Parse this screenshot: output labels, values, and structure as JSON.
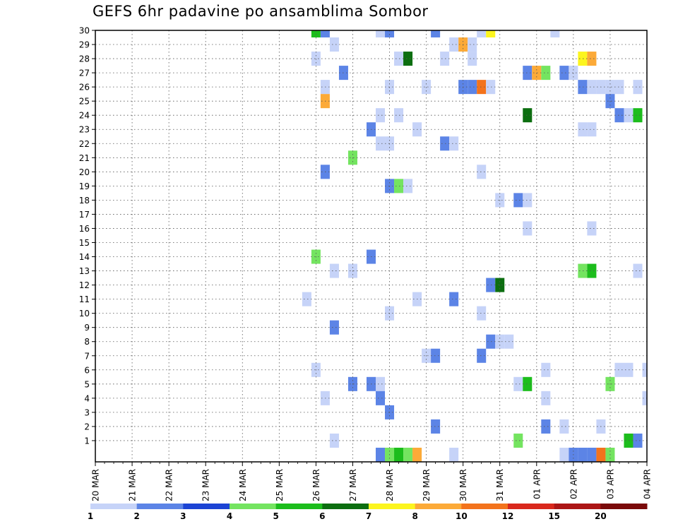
{
  "chart_data": {
    "type": "heatmap",
    "title": "GEFS 6hr padavine po ansamblima Sombor",
    "xlabel": "",
    "ylabel": "",
    "x_start": "20 MAR 00Z",
    "x_step_hours": 6,
    "x_steps": 60,
    "x_tick_labels": [
      "20 MAR",
      "21 MAR",
      "22 MAR",
      "23 MAR",
      "24 MAR",
      "25 MAR",
      "26 MAR",
      "27 MAR",
      "28 MAR",
      "29 MAR",
      "30 MAR",
      "31 MAR",
      "01 APR",
      "02 APR",
      "03 APR",
      "04 APR"
    ],
    "y_tick_labels": [
      "1",
      "2",
      "3",
      "4",
      "5",
      "6",
      "7",
      "8",
      "9",
      "10",
      "11",
      "12",
      "13",
      "14",
      "15",
      "16",
      "17",
      "18",
      "19",
      "20",
      "21",
      "22",
      "23",
      "24",
      "25",
      "26",
      "27",
      "28",
      "29",
      "30"
    ],
    "grid": true,
    "colorbar": {
      "labels": [
        "1",
        "2",
        "3",
        "4",
        "5",
        "6",
        "7",
        "8",
        "10",
        "12",
        "15",
        "20"
      ],
      "colors": [
        "#c6d3f8",
        "#5c84e6",
        "#1c44d4",
        "#74e460",
        "#1cbd1c",
        "#0c6e10",
        "#fcf51e",
        "#fcaa38",
        "#f3731c",
        "#d9281c",
        "#ac1616",
        "#7a0a0a"
      ]
    },
    "cells": [
      {
        "t": 24,
        "m": 30,
        "v": 5.5
      },
      {
        "t": 25,
        "m": 30,
        "v": 2
      },
      {
        "t": 31,
        "m": 30,
        "v": 1
      },
      {
        "t": 32,
        "m": 30,
        "v": 2
      },
      {
        "t": 37,
        "m": 30,
        "v": 2
      },
      {
        "t": 42,
        "m": 30,
        "v": 1
      },
      {
        "t": 43,
        "m": 30,
        "v": 7.5
      },
      {
        "t": 50,
        "m": 30,
        "v": 1
      },
      {
        "t": 26,
        "m": 29,
        "v": 1
      },
      {
        "t": 39,
        "m": 29,
        "v": 1
      },
      {
        "t": 40,
        "m": 29,
        "v": 9
      },
      {
        "t": 41,
        "m": 29,
        "v": 1
      },
      {
        "t": 24,
        "m": 28,
        "v": 1
      },
      {
        "t": 33,
        "m": 28,
        "v": 1
      },
      {
        "t": 34,
        "m": 28,
        "v": 6.5
      },
      {
        "t": 38,
        "m": 28,
        "v": 1
      },
      {
        "t": 41,
        "m": 28,
        "v": 1
      },
      {
        "t": 53,
        "m": 28,
        "v": 7.5
      },
      {
        "t": 54,
        "m": 28,
        "v": 9
      },
      {
        "t": 27,
        "m": 27,
        "v": 2
      },
      {
        "t": 47,
        "m": 27,
        "v": 2
      },
      {
        "t": 48,
        "m": 27,
        "v": 9
      },
      {
        "t": 49,
        "m": 27,
        "v": 4.5
      },
      {
        "t": 51,
        "m": 27,
        "v": 2
      },
      {
        "t": 52,
        "m": 27,
        "v": 1
      },
      {
        "t": 25,
        "m": 26,
        "v": 1
      },
      {
        "t": 32,
        "m": 26,
        "v": 1
      },
      {
        "t": 36,
        "m": 26,
        "v": 1
      },
      {
        "t": 40,
        "m": 26,
        "v": 2
      },
      {
        "t": 41,
        "m": 26,
        "v": 2.5
      },
      {
        "t": 42,
        "m": 26,
        "v": 11
      },
      {
        "t": 43,
        "m": 26,
        "v": 1
      },
      {
        "t": 53,
        "m": 26,
        "v": 2
      },
      {
        "t": 54,
        "m": 26,
        "v": 1
      },
      {
        "t": 55,
        "m": 26,
        "v": 1
      },
      {
        "t": 56,
        "m": 26,
        "v": 1
      },
      {
        "t": 57,
        "m": 26,
        "v": 1
      },
      {
        "t": 59,
        "m": 26,
        "v": 1
      },
      {
        "t": 25,
        "m": 25,
        "v": 9
      },
      {
        "t": 56,
        "m": 25,
        "v": 2.5
      },
      {
        "t": 31,
        "m": 24,
        "v": 1
      },
      {
        "t": 33,
        "m": 24,
        "v": 1
      },
      {
        "t": 47,
        "m": 24,
        "v": 6.5
      },
      {
        "t": 57,
        "m": 24,
        "v": 2
      },
      {
        "t": 58,
        "m": 24,
        "v": 1
      },
      {
        "t": 59,
        "m": 24,
        "v": 5.5
      },
      {
        "t": 30,
        "m": 23,
        "v": 2
      },
      {
        "t": 35,
        "m": 23,
        "v": 1
      },
      {
        "t": 53,
        "m": 23,
        "v": 1
      },
      {
        "t": 54,
        "m": 23,
        "v": 1
      },
      {
        "t": 31,
        "m": 22,
        "v": 1
      },
      {
        "t": 32,
        "m": 22,
        "v": 1
      },
      {
        "t": 38,
        "m": 22,
        "v": 2.5
      },
      {
        "t": 39,
        "m": 22,
        "v": 1
      },
      {
        "t": 28,
        "m": 21,
        "v": 4.5
      },
      {
        "t": 25,
        "m": 20,
        "v": 2.5
      },
      {
        "t": 42,
        "m": 20,
        "v": 1
      },
      {
        "t": 32,
        "m": 19,
        "v": 2.5
      },
      {
        "t": 33,
        "m": 19,
        "v": 4.5
      },
      {
        "t": 34,
        "m": 19,
        "v": 1
      },
      {
        "t": 44,
        "m": 18,
        "v": 1
      },
      {
        "t": 46,
        "m": 18,
        "v": 2.5
      },
      {
        "t": 47,
        "m": 18,
        "v": 1
      },
      {
        "t": 47,
        "m": 16,
        "v": 1
      },
      {
        "t": 54,
        "m": 16,
        "v": 1
      },
      {
        "t": 24,
        "m": 14,
        "v": 4.5
      },
      {
        "t": 30,
        "m": 14,
        "v": 2
      },
      {
        "t": 26,
        "m": 13,
        "v": 1
      },
      {
        "t": 28,
        "m": 13,
        "v": 1
      },
      {
        "t": 53,
        "m": 13,
        "v": 4.5
      },
      {
        "t": 54,
        "m": 13,
        "v": 5.5
      },
      {
        "t": 59,
        "m": 13,
        "v": 1
      },
      {
        "t": 43,
        "m": 12,
        "v": 2.5
      },
      {
        "t": 44,
        "m": 12,
        "v": 6.5
      },
      {
        "t": 23,
        "m": 11,
        "v": 1
      },
      {
        "t": 35,
        "m": 11,
        "v": 1
      },
      {
        "t": 39,
        "m": 11,
        "v": 2
      },
      {
        "t": 32,
        "m": 10,
        "v": 1
      },
      {
        "t": 42,
        "m": 10,
        "v": 1
      },
      {
        "t": 26,
        "m": 9,
        "v": 2.5
      },
      {
        "t": 43,
        "m": 8,
        "v": 2
      },
      {
        "t": 44,
        "m": 8,
        "v": 1
      },
      {
        "t": 45,
        "m": 8,
        "v": 1
      },
      {
        "t": 36,
        "m": 7,
        "v": 1
      },
      {
        "t": 37,
        "m": 7,
        "v": 2
      },
      {
        "t": 42,
        "m": 7,
        "v": 2.5
      },
      {
        "t": 24,
        "m": 6,
        "v": 1
      },
      {
        "t": 49,
        "m": 6,
        "v": 1
      },
      {
        "t": 57,
        "m": 6,
        "v": 1
      },
      {
        "t": 58,
        "m": 6,
        "v": 1
      },
      {
        "t": 60,
        "m": 6,
        "v": 1
      },
      {
        "t": 28,
        "m": 5,
        "v": 2
      },
      {
        "t": 30,
        "m": 5,
        "v": 2
      },
      {
        "t": 31,
        "m": 5,
        "v": 1
      },
      {
        "t": 46,
        "m": 5,
        "v": 1
      },
      {
        "t": 47,
        "m": 5,
        "v": 5.5
      },
      {
        "t": 56,
        "m": 5,
        "v": 4.5
      },
      {
        "t": 25,
        "m": 4,
        "v": 1
      },
      {
        "t": 31,
        "m": 4,
        "v": 2.5
      },
      {
        "t": 49,
        "m": 4,
        "v": 1
      },
      {
        "t": 60,
        "m": 4,
        "v": 1
      },
      {
        "t": 32,
        "m": 3,
        "v": 2
      },
      {
        "t": 37,
        "m": 2,
        "v": 2
      },
      {
        "t": 49,
        "m": 2,
        "v": 2
      },
      {
        "t": 51,
        "m": 2,
        "v": 1
      },
      {
        "t": 55,
        "m": 2,
        "v": 1
      },
      {
        "t": 26,
        "m": 1,
        "v": 1
      },
      {
        "t": 46,
        "m": 1,
        "v": 4.5
      },
      {
        "t": 58,
        "m": 1,
        "v": 5.5
      },
      {
        "t": 59,
        "m": 1,
        "v": 2
      },
      {
        "t": 31,
        "m": 0,
        "v": 2
      },
      {
        "t": 32,
        "m": 0,
        "v": 4.5
      },
      {
        "t": 33,
        "m": 0,
        "v": 5.5
      },
      {
        "t": 34,
        "m": 0,
        "v": 4.5
      },
      {
        "t": 35,
        "m": 0,
        "v": 9
      },
      {
        "t": 39,
        "m": 0,
        "v": 1
      },
      {
        "t": 51,
        "m": 0,
        "v": 1
      },
      {
        "t": 52,
        "m": 0,
        "v": 2
      },
      {
        "t": 53,
        "m": 0,
        "v": 2.5
      },
      {
        "t": 54,
        "m": 0,
        "v": 2.5
      },
      {
        "t": 55,
        "m": 0,
        "v": 11
      },
      {
        "t": 56,
        "m": 0,
        "v": 4.5
      }
    ]
  }
}
